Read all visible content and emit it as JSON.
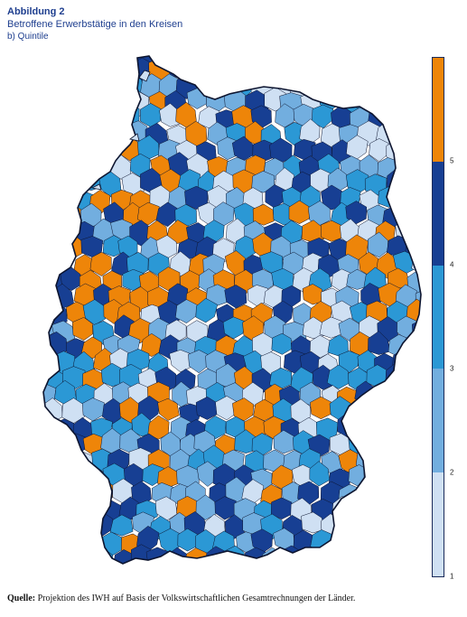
{
  "header": {
    "figure_label": "Abbildung 2",
    "title": "Betroffene Erwerbstätige in den Kreisen",
    "subtitle": "b) Quintile"
  },
  "legend": {
    "ticks": [
      "1",
      "2",
      "3",
      "4",
      "5"
    ],
    "bands": [
      {
        "quintile": 1,
        "color": "#cfe0f3"
      },
      {
        "quintile": 2,
        "color": "#72aedf"
      },
      {
        "quintile": 3,
        "color": "#2b98d5"
      },
      {
        "quintile": 4,
        "color": "#173f93"
      },
      {
        "quintile": 5,
        "color": "#ee8509"
      }
    ]
  },
  "map": {
    "region": "Deutschland",
    "border_color": "#0d1530"
  },
  "source": {
    "label": "Quelle:",
    "text": "Projektion des IWH auf Basis der Volkswirtschaftlichen Gesamtrechnungen der Länder."
  }
}
